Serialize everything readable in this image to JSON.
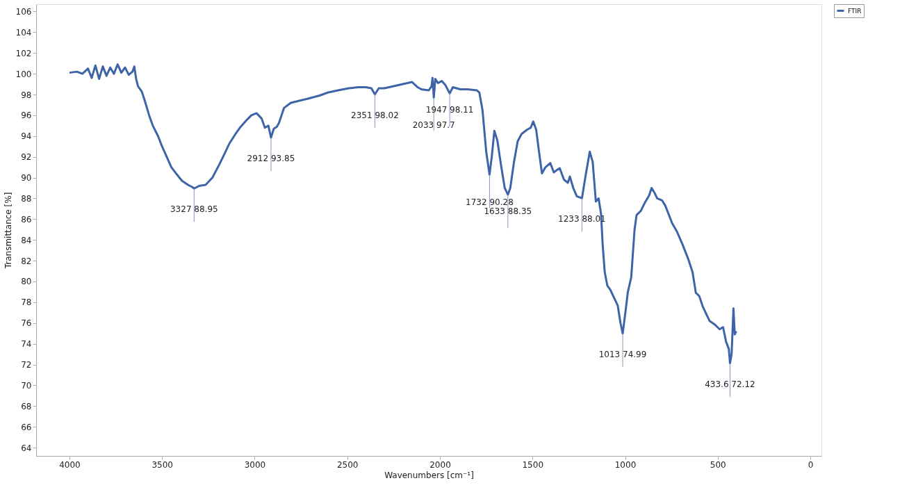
{
  "chart_data": {
    "type": "line",
    "xlabel": "Wavenumbers [cm⁻¹]",
    "ylabel": "Transmittance [%]",
    "xlim": [
      4180,
      -60
    ],
    "ylim": [
      63.2,
      106.7
    ],
    "xticks": [
      4000,
      3500,
      3000,
      2500,
      2000,
      1500,
      1000,
      500,
      0
    ],
    "yticks": [
      64,
      66,
      68,
      70,
      72,
      74,
      76,
      78,
      80,
      82,
      84,
      86,
      88,
      90,
      92,
      94,
      96,
      98,
      100,
      102,
      104,
      106
    ],
    "grid": false,
    "legend": "right",
    "marker": "none",
    "line_style": "solid",
    "series": [
      {
        "name": "FTIR",
        "color": "#3e64a8",
        "x": [
          4000,
          3960,
          3930,
          3900,
          3880,
          3860,
          3840,
          3820,
          3800,
          3780,
          3760,
          3740,
          3720,
          3700,
          3680,
          3660,
          3650,
          3640,
          3630,
          3610,
          3595,
          3580,
          3570,
          3550,
          3522,
          3500,
          3485,
          3450,
          3420,
          3393,
          3360,
          3338,
          3327,
          3300,
          3265,
          3228,
          3190,
          3160,
          3136,
          3100,
          3080,
          3040,
          3018,
          2990,
          2963,
          2945,
          2926,
          2912,
          2897,
          2880,
          2868,
          2842,
          2805,
          2760,
          2713,
          2650,
          2603,
          2550,
          2493,
          2440,
          2400,
          2370,
          2351,
          2330,
          2300,
          2250,
          2200,
          2150,
          2120,
          2100,
          2060,
          2045,
          2040,
          2033,
          2025,
          2010,
          1990,
          1970,
          1947,
          1930,
          1890,
          1850,
          1800,
          1787,
          1770,
          1750,
          1732,
          1720,
          1706,
          1690,
          1670,
          1650,
          1633,
          1620,
          1600,
          1580,
          1559,
          1530,
          1510,
          1496,
          1480,
          1465,
          1449,
          1430,
          1404,
          1385,
          1371,
          1353,
          1330,
          1309,
          1298,
          1280,
          1261,
          1233,
          1215,
          1191,
          1175,
          1158,
          1143,
          1130,
          1121,
          1110,
          1096,
          1080,
          1059,
          1040,
          1025,
          1013,
          1000,
          985,
          967,
          949,
          938,
          915,
          893,
          870,
          857,
          840,
          827,
          800,
          783,
          746,
          720,
          691,
          660,
          636,
          618,
          600,
          581,
          560,
          544,
          520,
          507,
          490,
          471,
          455,
          440,
          433.6,
          425,
          415,
          408,
          400
        ],
        "values": [
          100.1,
          100.2,
          100.0,
          100.5,
          99.6,
          100.8,
          99.5,
          100.7,
          99.8,
          100.6,
          100.0,
          100.9,
          100.1,
          100.6,
          99.9,
          100.2,
          100.7,
          99.5,
          98.8,
          98.3,
          97.5,
          96.6,
          96.0,
          95.0,
          94.0,
          93.0,
          92.4,
          91.0,
          90.3,
          89.7,
          89.3,
          89.1,
          88.95,
          89.2,
          89.3,
          90.0,
          91.3,
          92.4,
          93.3,
          94.3,
          94.8,
          95.6,
          96.0,
          96.2,
          95.7,
          94.8,
          95.0,
          93.85,
          94.7,
          94.9,
          95.3,
          96.7,
          97.2,
          97.4,
          97.6,
          97.9,
          98.2,
          98.4,
          98.6,
          98.7,
          98.7,
          98.6,
          98.02,
          98.6,
          98.6,
          98.8,
          99.0,
          99.2,
          98.7,
          98.5,
          98.4,
          98.8,
          99.6,
          97.7,
          99.5,
          99.1,
          99.3,
          98.9,
          98.11,
          98.7,
          98.5,
          98.5,
          98.4,
          98.2,
          96.5,
          92.5,
          90.28,
          92.0,
          94.5,
          93.6,
          91.2,
          89.0,
          88.35,
          89.0,
          91.5,
          93.5,
          94.2,
          94.6,
          94.8,
          95.4,
          94.6,
          92.5,
          90.4,
          91.0,
          91.4,
          90.5,
          90.7,
          90.9,
          89.8,
          89.5,
          90.1,
          89.0,
          88.2,
          88.01,
          90.0,
          92.5,
          91.5,
          87.7,
          88.0,
          86.5,
          83.5,
          80.9,
          79.6,
          79.2,
          78.4,
          77.7,
          76.0,
          74.99,
          76.8,
          79.0,
          80.4,
          85.0,
          86.4,
          86.8,
          87.6,
          88.3,
          89.0,
          88.5,
          88.0,
          87.8,
          87.3,
          85.6,
          84.8,
          83.6,
          82.2,
          80.9,
          78.9,
          78.6,
          77.6,
          76.8,
          76.2,
          75.9,
          75.7,
          75.4,
          75.6,
          74.2,
          73.5,
          72.12,
          73.0,
          77.4,
          74.9,
          75.2
        ]
      }
    ],
    "annotations": [
      {
        "text": "3327 88.95",
        "x": 3327,
        "y": 88.95
      },
      {
        "text": "2912 93.85",
        "x": 2912,
        "y": 93.85
      },
      {
        "text": "2351 98.02",
        "x": 2351,
        "y": 98.02
      },
      {
        "text": "2033 97.7",
        "x": 2033,
        "y": 97.7
      },
      {
        "text": "1947 98.11",
        "x": 1947,
        "y": 98.11
      },
      {
        "text": "1732 90.28",
        "x": 1732,
        "y": 90.28
      },
      {
        "text": "1633 88.35",
        "x": 1633,
        "y": 88.35
      },
      {
        "text": "1233 88.01",
        "x": 1233,
        "y": 88.01
      },
      {
        "text": "1013 74.99",
        "x": 1013,
        "y": 74.99
      },
      {
        "text": "433.6 72.12",
        "x": 433.6,
        "y": 72.12
      }
    ]
  }
}
